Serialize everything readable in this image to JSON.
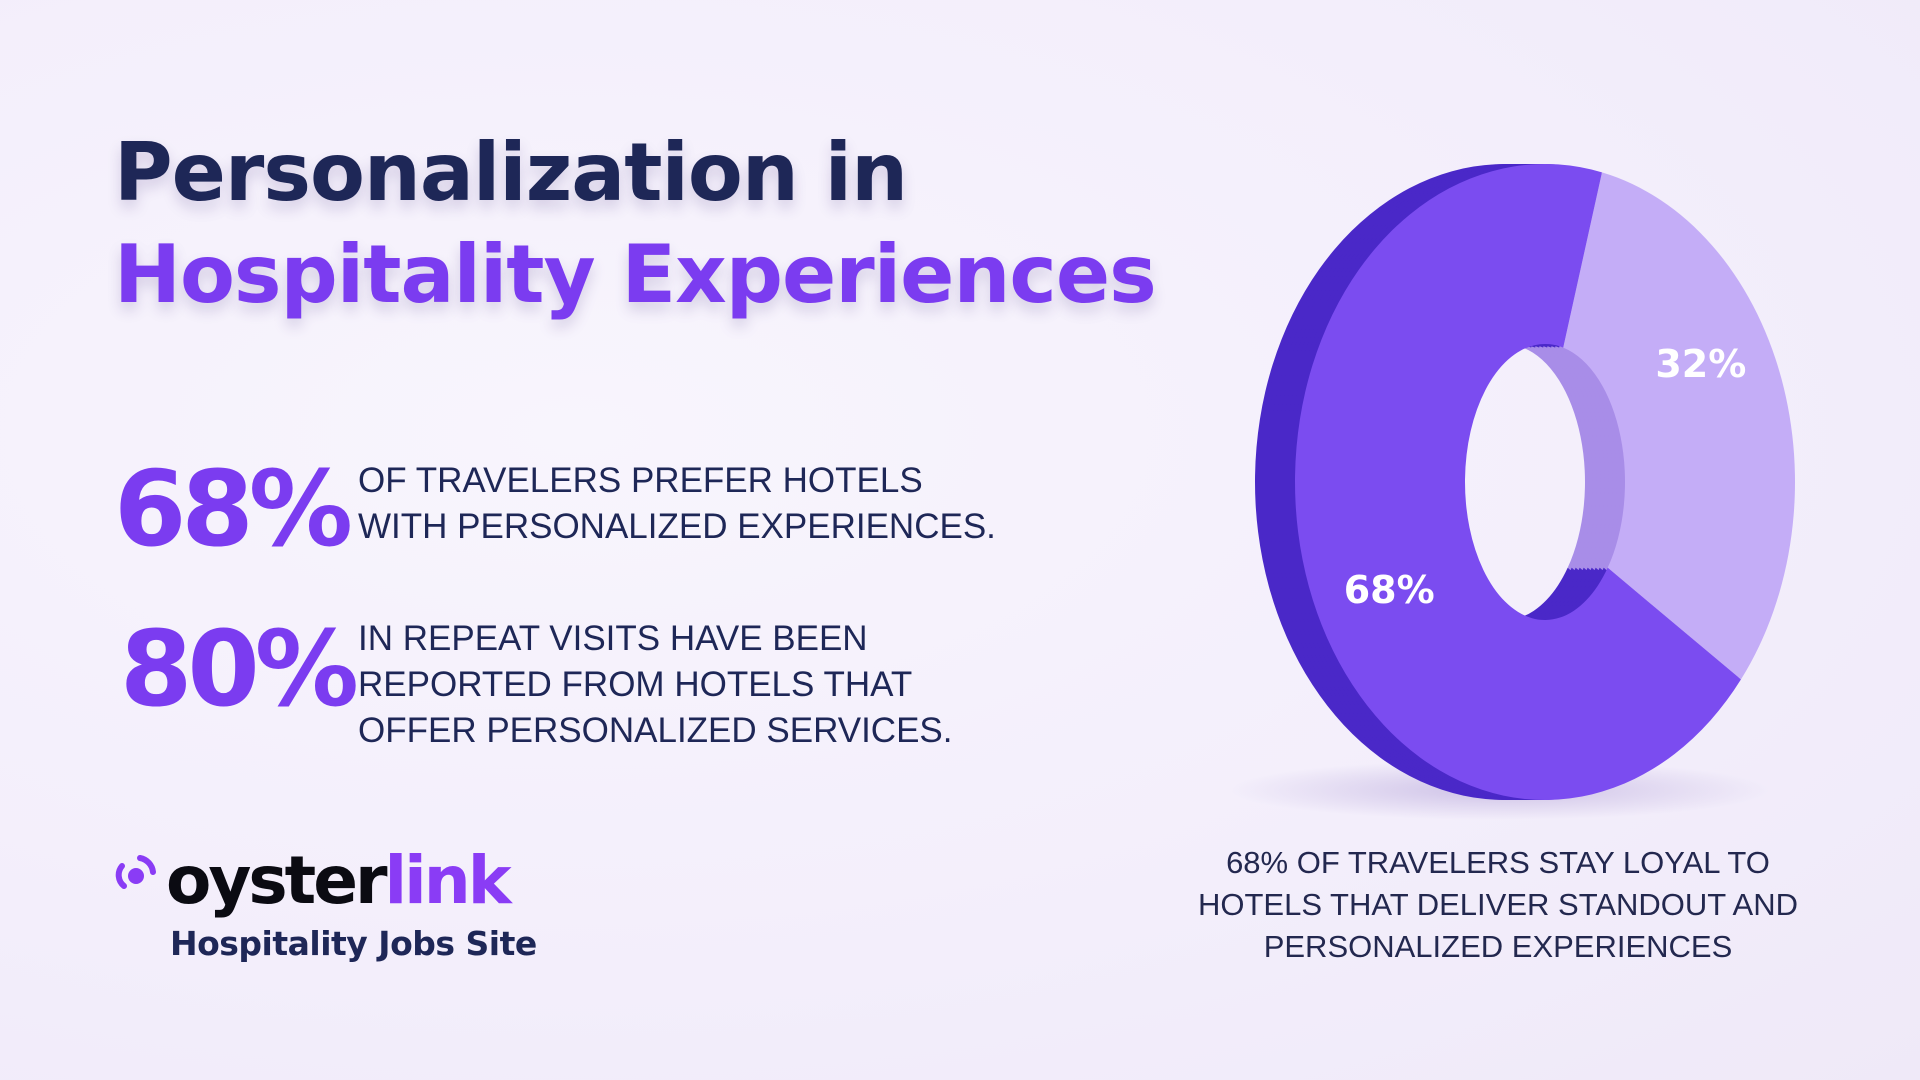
{
  "title": {
    "line1": "Personalization in",
    "line2": "Hospitality Experiences"
  },
  "stats": [
    {
      "value": "68%",
      "lines": [
        "OF TRAVELERS PREFER HOTELS",
        "WITH PERSONALIZED EXPERIENCES."
      ]
    },
    {
      "value": "80%",
      "lines": [
        "IN REPEAT VISITS HAVE BEEN",
        "REPORTED FROM HOTELS THAT",
        "OFFER PERSONALIZED SERVICES."
      ]
    }
  ],
  "brand": {
    "name_part1": "oyster",
    "name_part2": "link",
    "tagline": "Hospitality Jobs Site"
  },
  "chart_data": {
    "type": "pie",
    "style": "3d-donut",
    "slices": [
      {
        "label": "68%",
        "value": 68,
        "color": "#7b4cf0"
      },
      {
        "label": "32%",
        "value": 32,
        "color": "#c4adf7"
      }
    ],
    "caption": [
      "68% OF TRAVELERS STAY LOYAL TO",
      "HOTELS THAT DELIVER STANDOUT AND",
      "PERSONALIZED EXPERIENCES"
    ]
  },
  "colors": {
    "navy": "#1e2757",
    "accent": "#7b3cf0"
  }
}
